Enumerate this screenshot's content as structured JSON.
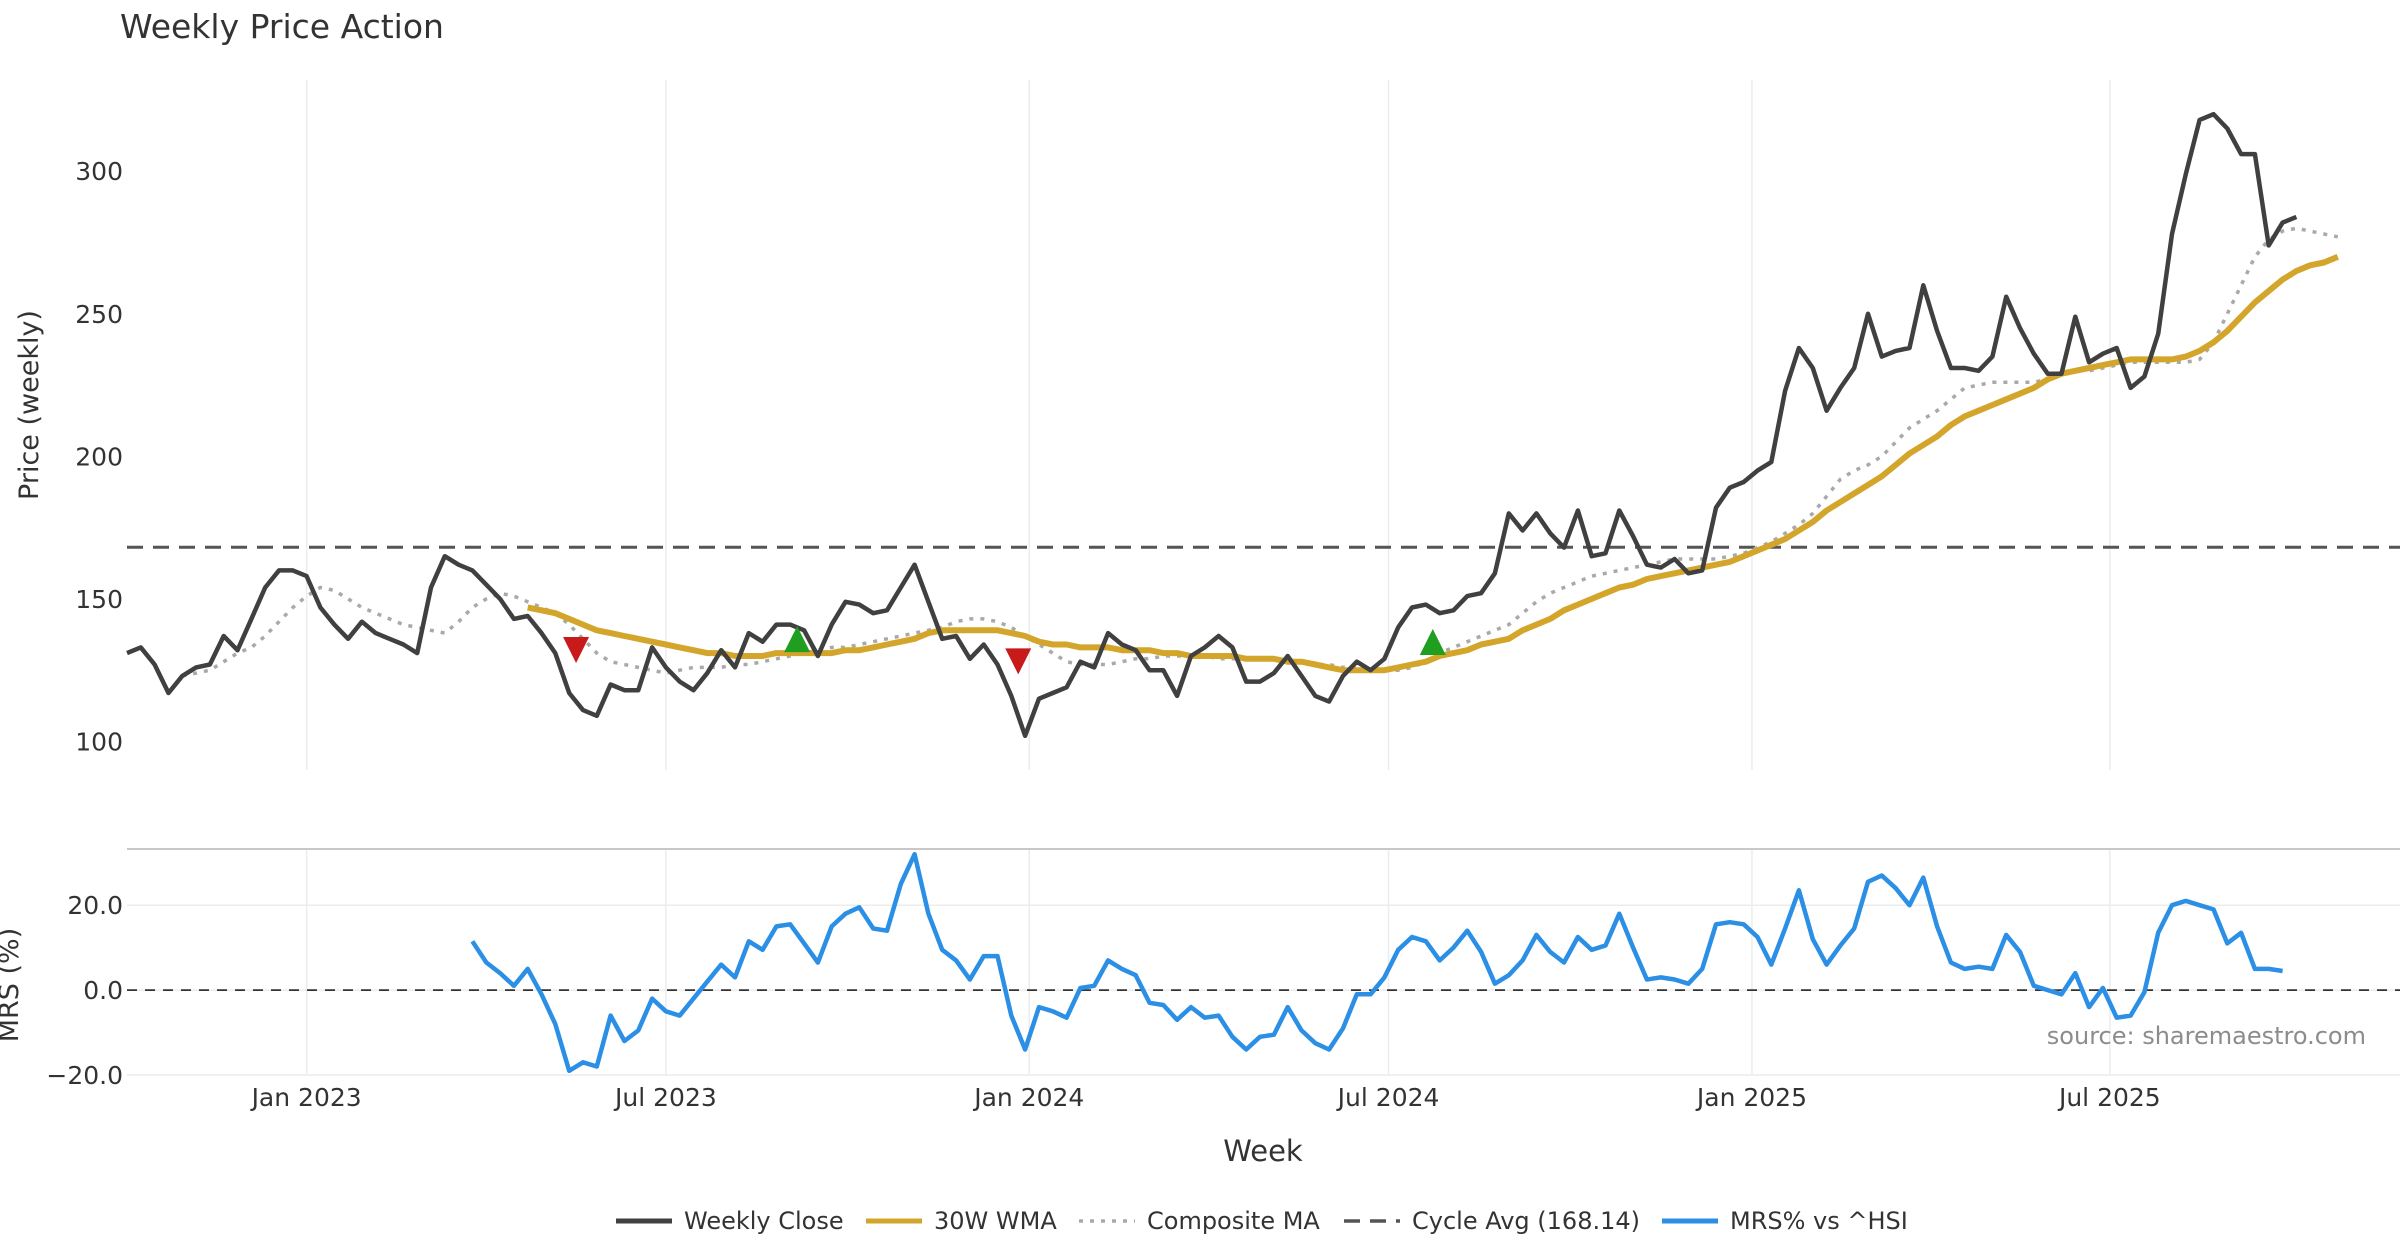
{
  "chart_data": [
    {
      "type": "line",
      "title": "Weekly Price Action",
      "xlabel": "",
      "ylabel": "Price (weekly)",
      "ylim": [
        90,
        332
      ],
      "yticks": [
        100,
        150,
        200,
        250,
        300
      ],
      "x_unit": "weeks since 2022-10-03",
      "x_range": [
        0,
        164.5
      ],
      "x_tick_positions": [
        13,
        39,
        65.3,
        91.3,
        117.6,
        143.5
      ],
      "grid": true,
      "series": [
        {
          "name": "Weekly Close",
          "color": "#404040",
          "style": "solid",
          "x_start": 0,
          "values": [
            131,
            133,
            127,
            117,
            123,
            126,
            127,
            137,
            132,
            143,
            154,
            160,
            160,
            158,
            147,
            141,
            136,
            142,
            138,
            136,
            134,
            131,
            154,
            165,
            162,
            160,
            155,
            150,
            143,
            144,
            138,
            131,
            117,
            111,
            109,
            120,
            118,
            118,
            133,
            126,
            121,
            118,
            124,
            132,
            126,
            138,
            135,
            141,
            141,
            139,
            130,
            141,
            149,
            148,
            145,
            146,
            154,
            162,
            149,
            136,
            137,
            129,
            134,
            127,
            116,
            102,
            115,
            117,
            119,
            128,
            126,
            138,
            134,
            132,
            125,
            125,
            116,
            130,
            133,
            137,
            133,
            121,
            121,
            124,
            130,
            123,
            116,
            114,
            123,
            128,
            125,
            129,
            140,
            147,
            148,
            145,
            146,
            151,
            152,
            159,
            180,
            174,
            180,
            173,
            168,
            181,
            165,
            166,
            181,
            172,
            162,
            161,
            164,
            159,
            160,
            182,
            189,
            191,
            195,
            198,
            223,
            238,
            231,
            216,
            224,
            231,
            250,
            235,
            237,
            238,
            260,
            244,
            231,
            231,
            230,
            235,
            256,
            245,
            236,
            229,
            229,
            249,
            233,
            236,
            238,
            224,
            228,
            243,
            278,
            299,
            318,
            320,
            315,
            306,
            306,
            274,
            282,
            284
          ]
        },
        {
          "name": "30W WMA",
          "color": "#d4a52b",
          "style": "solid",
          "x_start": 29,
          "values": [
            147,
            146,
            145,
            143,
            141,
            139,
            138,
            137,
            136,
            135,
            134,
            133,
            132,
            131,
            131,
            130,
            130,
            130,
            131,
            131,
            131,
            131,
            131,
            132,
            132,
            133,
            134,
            135,
            136,
            138,
            139,
            139,
            139,
            139,
            139,
            138,
            137,
            135,
            134,
            134,
            133,
            133,
            133,
            132,
            132,
            132,
            131,
            131,
            130,
            130,
            130,
            130,
            129,
            129,
            129,
            128,
            128,
            127,
            126,
            125,
            125,
            125,
            125,
            126,
            127,
            128,
            130,
            131,
            132,
            134,
            135,
            136,
            139,
            141,
            143,
            146,
            148,
            150,
            152,
            154,
            155,
            157,
            158,
            159,
            160,
            161,
            162,
            163,
            165,
            167,
            169,
            171,
            174,
            177,
            181,
            184,
            187,
            190,
            193,
            197,
            201,
            204,
            207,
            211,
            214,
            216,
            218,
            220,
            222,
            224,
            227,
            229,
            230,
            231,
            232,
            233,
            234,
            234,
            234,
            234,
            235,
            237,
            240,
            244,
            249,
            254,
            258,
            262,
            265,
            267,
            268,
            270
          ]
        },
        {
          "name": "Composite MA",
          "color": "#a9a9a9",
          "style": "dotted",
          "x_start": 4,
          "values": [
            123,
            124,
            125,
            128,
            131,
            133,
            137,
            142,
            147,
            151,
            154,
            153,
            150,
            147,
            145,
            143,
            141,
            140,
            139,
            138,
            142,
            147,
            150,
            152,
            151,
            149,
            147,
            145,
            141,
            136,
            131,
            128,
            127,
            126,
            125,
            124,
            125,
            126,
            126,
            126,
            127,
            127,
            128,
            129,
            130,
            131,
            132,
            133,
            133,
            134,
            135,
            136,
            137,
            138,
            139,
            140,
            142,
            143,
            143,
            142,
            140,
            137,
            134,
            131,
            128,
            127,
            127,
            127,
            128,
            129,
            129,
            130,
            130,
            130,
            130,
            129,
            129,
            129,
            129,
            129,
            128,
            128,
            127,
            127,
            126,
            126,
            125,
            125,
            125,
            126,
            128,
            131,
            133,
            135,
            137,
            139,
            141,
            145,
            149,
            152,
            154,
            156,
            158,
            159,
            160,
            161,
            162,
            163,
            164,
            164,
            164,
            164,
            165,
            166,
            168,
            170,
            173,
            176,
            180,
            186,
            192,
            195,
            197,
            200,
            205,
            210,
            213,
            216,
            220,
            224,
            225,
            226,
            226,
            226,
            226,
            227,
            229,
            230,
            230,
            231,
            232,
            233,
            233,
            233,
            233,
            233,
            234,
            240,
            250,
            260,
            270,
            276,
            279,
            280,
            279,
            278,
            277
          ]
        },
        {
          "name": "Cycle Avg (168.14)",
          "color": "#555555",
          "style": "dashed",
          "value": 168.14
        }
      ],
      "markers": [
        {
          "type": "sell",
          "x": 32.5,
          "y": 133,
          "color": "#c8191b"
        },
        {
          "type": "buy",
          "x": 48.5,
          "y": 135,
          "color": "#1f9e1f"
        },
        {
          "type": "sell",
          "x": 64.5,
          "y": 129,
          "color": "#c8191b"
        },
        {
          "type": "buy",
          "x": 94.5,
          "y": 134,
          "color": "#1f9e1f"
        }
      ]
    },
    {
      "type": "line",
      "xlabel": "Week",
      "ylabel": "MRS (%)",
      "ylim": [
        -20.0,
        33.0
      ],
      "yticks": [
        -20.0,
        0.0,
        20.0
      ],
      "ytick_labels": [
        "−20.0",
        "0.0",
        "20.0"
      ],
      "x_unit": "weeks since 2022-10-03",
      "x_range": [
        0,
        164.5
      ],
      "x_ticks": [
        "Jan 2023",
        "Jul 2023",
        "Jan 2024",
        "Jul 2024",
        "Jan 2025",
        "Jul 2025"
      ],
      "x_tick_positions": [
        13,
        39,
        65.3,
        91.3,
        117.6,
        143.5
      ],
      "zero_line": 0.0,
      "series": [
        {
          "name": "MRS% vs ^HSI",
          "color": "#2b8fe5",
          "style": "solid",
          "x_start": 25,
          "values": [
            11.5,
            6.5,
            4.0,
            1.0,
            5.0,
            -1.0,
            -8.0,
            -19.0,
            -17.0,
            -18.0,
            -6.0,
            -12.0,
            -9.5,
            -2.0,
            -5.0,
            -6.0,
            -2.0,
            2.0,
            6.0,
            3.0,
            11.5,
            9.5,
            15.0,
            15.5,
            11.0,
            6.5,
            15.0,
            18.0,
            19.5,
            14.5,
            14.0,
            25.0,
            32.0,
            18.0,
            9.5,
            7.0,
            2.5,
            8.0,
            8.0,
            -6.0,
            -14.0,
            -4.0,
            -5.0,
            -6.5,
            0.5,
            1.0,
            7.0,
            5.0,
            3.5,
            -3.0,
            -3.5,
            -7.0,
            -4.0,
            -6.5,
            -6.0,
            -11.0,
            -14.0,
            -11.0,
            -10.5,
            -4.0,
            -9.5,
            -12.5,
            -14.0,
            -9.0,
            -1.0,
            -1.0,
            3.0,
            9.5,
            12.5,
            11.5,
            7.0,
            10.0,
            14.0,
            9.0,
            1.5,
            3.5,
            7.0,
            13.0,
            9.0,
            6.5,
            12.5,
            9.5,
            10.5,
            18.0,
            10.0,
            2.5,
            3.0,
            2.5,
            1.5,
            5.0,
            15.5,
            16.0,
            15.5,
            12.5,
            6.0,
            14.5,
            23.5,
            12.0,
            6.0,
            10.5,
            14.5,
            25.5,
            27.0,
            24.0,
            20.0,
            26.5,
            15.0,
            6.5,
            5.0,
            5.5,
            5.0,
            13.0,
            9.0,
            1.0,
            0.0,
            -1.0,
            4.0,
            -4.0,
            0.5,
            -6.5,
            -6.0,
            -0.5,
            13.5,
            20.0,
            21.0,
            20.0,
            19.0,
            11.0,
            13.5,
            5.0,
            5.0,
            4.5
          ]
        }
      ]
    }
  ],
  "source_text": "source: sharemaestro.com",
  "legend": [
    {
      "label": "Weekly Close",
      "color": "#404040",
      "style": "solid"
    },
    {
      "label": "30W WMA",
      "color": "#d4a52b",
      "style": "solid"
    },
    {
      "label": "Composite MA",
      "color": "#a9a9a9",
      "style": "dotted"
    },
    {
      "label": "Cycle Avg (168.14)",
      "color": "#555555",
      "style": "dashed"
    },
    {
      "label": "MRS% vs ^HSI",
      "color": "#2b8fe5",
      "style": "solid"
    }
  ]
}
